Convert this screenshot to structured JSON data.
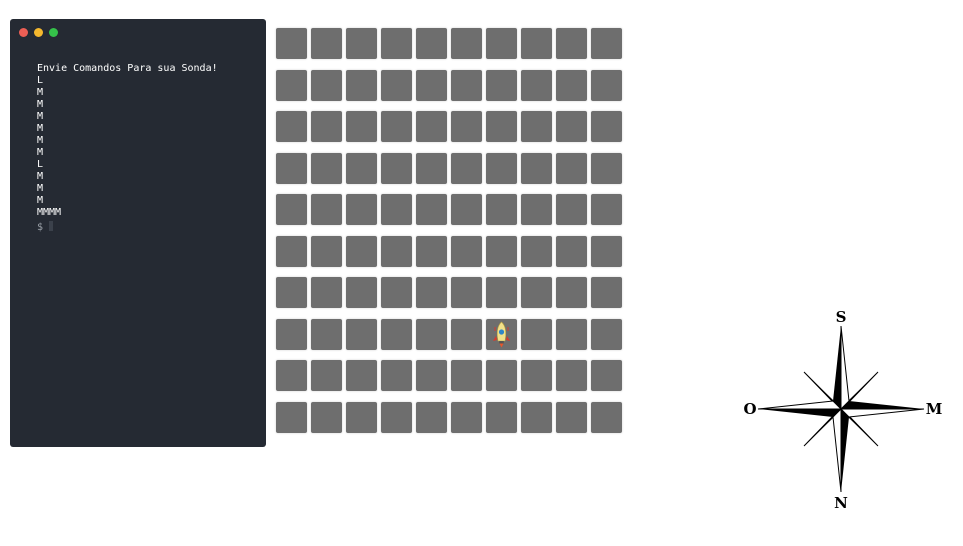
{
  "terminal": {
    "window_dots": [
      {
        "name": "close",
        "color": "#ed5f55"
      },
      {
        "name": "minimize",
        "color": "#f5b82e"
      },
      {
        "name": "maximize",
        "color": "#35c24a"
      }
    ],
    "lines": [
      "Envie Comandos Para sua Sonda!",
      "L",
      "M",
      "M",
      "M",
      "M",
      "M",
      "M",
      "L",
      "M",
      "M",
      "M",
      "MMMM"
    ],
    "prompt": "$"
  },
  "grid": {
    "rows": 10,
    "cols": 10,
    "cell_color": "#6e6e6e",
    "probe": {
      "row": 7,
      "col": 6,
      "icon": "rocket-icon"
    }
  },
  "compass": {
    "top": "S",
    "bottom": "N",
    "left": "O",
    "right": "M"
  }
}
